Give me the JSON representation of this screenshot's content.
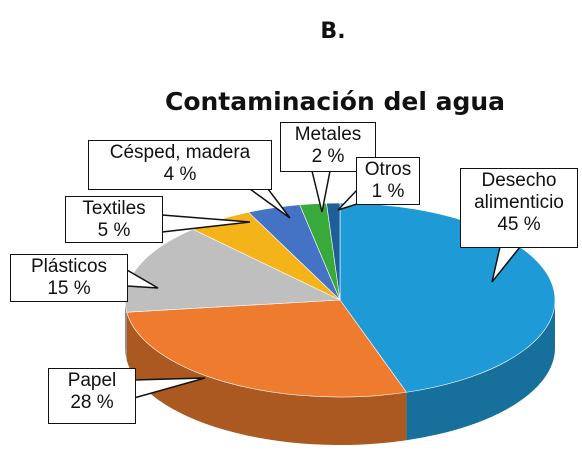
{
  "chart_data": {
    "type": "pie",
    "heading": "B.",
    "title": "Contaminación del agua",
    "categories": [
      "Desecho alimenticio",
      "Papel",
      "Plásticos",
      "Textiles",
      "Césped, madera",
      "Metales",
      "Otros"
    ],
    "values": [
      45,
      28,
      15,
      5,
      4,
      2,
      1
    ],
    "value_labels": [
      "45 %",
      "28 %",
      "15 %",
      "5 %",
      "4 %",
      "2 %",
      "1 %"
    ],
    "colors": [
      "#1e9bd7",
      "#ee7b2e",
      "#bfbfbf",
      "#f5b31a",
      "#4472c4",
      "#38aa3c",
      "#1f5f99"
    ]
  }
}
